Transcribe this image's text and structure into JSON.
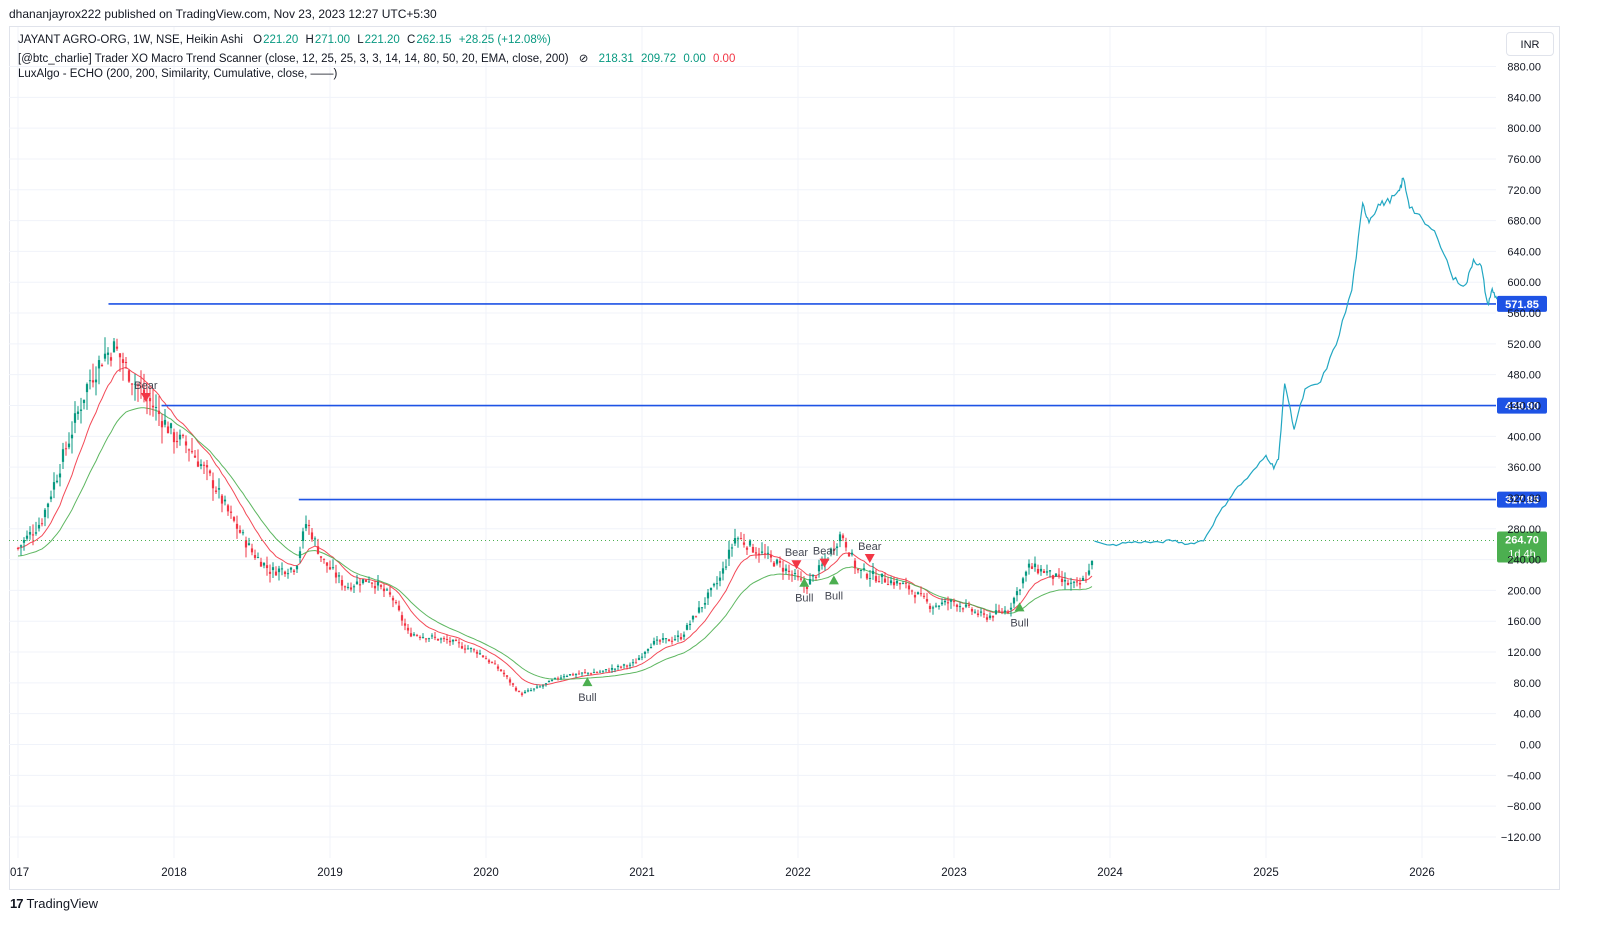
{
  "attribution": "dhananjayrox222 published on TradingView.com, Nov 23, 2023 12:27 UTC+5:30",
  "legend": {
    "main": {
      "symbol": "JAYANT AGRO-ORG, 1W, NSE, Heikin Ashi",
      "o_label": "O",
      "o": "221.20",
      "h_label": "H",
      "h": "271.00",
      "l_label": "L",
      "l": "221.20",
      "c_label": "C",
      "c": "262.15",
      "change": "+28.25 (+12.08%)"
    },
    "indicator1": {
      "name": "[@btc_charlie] Trader XO Macro Trend Scanner (close, 12, 25, 25, 3, 3, 14, 14, 80, 50, 20, EMA, close, 200)",
      "eye_icon": "eye-off-icon",
      "v1": "218.31",
      "v2": "209.72",
      "v3": "0.00",
      "v4": "0.00"
    },
    "indicator2": {
      "name": "LuxAlgo - ECHO (200, 200, Similarity, Cumulative, close, ——)"
    }
  },
  "currency": "INR",
  "brand": {
    "logo": "17",
    "name": "TradingView"
  },
  "colors": {
    "up": "#089981",
    "down": "#f23645",
    "level_line": "#1e53e5",
    "echo": "#22a7c2",
    "ema_fast": "#f23645",
    "ema_slow": "#4caf50",
    "current_price": "#4caf50",
    "grid": "#f0f3fa"
  },
  "chart_data": {
    "type": "candlestick",
    "x_axis_labels": [
      "017",
      "2018",
      "2019",
      "2020",
      "2021",
      "2022",
      "2023",
      "2024",
      "2025",
      "2026"
    ],
    "y_axis": {
      "ticks": [
        "880.00",
        "840.00",
        "800.00",
        "760.00",
        "720.00",
        "680.00",
        "640.00",
        "600.00",
        "560.00",
        "520.00",
        "480.00",
        "440.00",
        "400.00",
        "360.00",
        "320.00",
        "280.00",
        "240.00",
        "200.00",
        "160.00",
        "120.00",
        "80.00",
        "40.00",
        "0.00",
        "−40.00",
        "−80.00",
        "−120.00"
      ],
      "tick_values": [
        880,
        840,
        800,
        760,
        720,
        680,
        640,
        600,
        560,
        520,
        480,
        440,
        400,
        360,
        320,
        280,
        240,
        200,
        160,
        120,
        80,
        40,
        0,
        -40,
        -80,
        -120
      ],
      "range": [
        -145,
        915
      ]
    },
    "levels": [
      {
        "price": 571.85,
        "label": "571.85",
        "from_date": 2017.58
      },
      {
        "price": 439.9,
        "label": "439.90",
        "from_date": 2017.92
      },
      {
        "price": 317.85,
        "label": "317.85",
        "from_date": 2018.8
      }
    ],
    "current_price": {
      "price": 264.7,
      "label": "264.70",
      "countdown": "1d 4h"
    },
    "price_path": [
      [
        2017.0,
        255
      ],
      [
        2017.15,
        290
      ],
      [
        2017.3,
        380
      ],
      [
        2017.45,
        470
      ],
      [
        2017.55,
        505
      ],
      [
        2017.62,
        515
      ],
      [
        2017.75,
        470
      ],
      [
        2017.9,
        430
      ],
      [
        2018.0,
        400
      ],
      [
        2018.1,
        385
      ],
      [
        2018.25,
        340
      ],
      [
        2018.35,
        300
      ],
      [
        2018.5,
        250
      ],
      [
        2018.62,
        225
      ],
      [
        2018.78,
        230
      ],
      [
        2018.85,
        290
      ],
      [
        2018.95,
        240
      ],
      [
        2019.1,
        205
      ],
      [
        2019.25,
        215
      ],
      [
        2019.4,
        190
      ],
      [
        2019.5,
        145
      ],
      [
        2019.62,
        140
      ],
      [
        2019.75,
        135
      ],
      [
        2019.95,
        120
      ],
      [
        2020.1,
        95
      ],
      [
        2020.22,
        65
      ],
      [
        2020.35,
        75
      ],
      [
        2020.5,
        90
      ],
      [
        2020.75,
        95
      ],
      [
        2020.95,
        105
      ],
      [
        2021.05,
        130
      ],
      [
        2021.25,
        140
      ],
      [
        2021.35,
        170
      ],
      [
        2021.5,
        215
      ],
      [
        2021.6,
        270
      ],
      [
        2021.75,
        250
      ],
      [
        2021.9,
        230
      ],
      [
        2022.05,
        205
      ],
      [
        2022.15,
        230
      ],
      [
        2022.28,
        275
      ],
      [
        2022.38,
        225
      ],
      [
        2022.55,
        215
      ],
      [
        2022.7,
        205
      ],
      [
        2022.85,
        180
      ],
      [
        2023.0,
        185
      ],
      [
        2023.2,
        165
      ],
      [
        2023.35,
        175
      ],
      [
        2023.42,
        205
      ],
      [
        2023.48,
        230
      ],
      [
        2023.58,
        225
      ],
      [
        2023.7,
        210
      ],
      [
        2023.8,
        205
      ],
      [
        2023.87,
        225
      ],
      [
        2023.9,
        262
      ]
    ],
    "echo_projection": [
      [
        2023.9,
        264
      ],
      [
        2024.0,
        258
      ],
      [
        2024.1,
        262
      ],
      [
        2024.2,
        263
      ],
      [
        2024.3,
        262
      ],
      [
        2024.4,
        265
      ],
      [
        2024.5,
        260
      ],
      [
        2024.6,
        265
      ],
      [
        2024.7,
        300
      ],
      [
        2024.8,
        330
      ],
      [
        2024.9,
        350
      ],
      [
        2025.0,
        375
      ],
      [
        2025.05,
        360
      ],
      [
        2025.08,
        370
      ],
      [
        2025.12,
        470
      ],
      [
        2025.18,
        410
      ],
      [
        2025.25,
        460
      ],
      [
        2025.35,
        470
      ],
      [
        2025.45,
        520
      ],
      [
        2025.55,
        590
      ],
      [
        2025.62,
        700
      ],
      [
        2025.66,
        680
      ],
      [
        2025.72,
        700
      ],
      [
        2025.78,
        705
      ],
      [
        2025.85,
        715
      ],
      [
        2025.88,
        735
      ],
      [
        2025.92,
        700
      ],
      [
        2026.0,
        680
      ],
      [
        2026.1,
        660
      ],
      [
        2026.2,
        605
      ],
      [
        2026.28,
        595
      ],
      [
        2026.33,
        630
      ],
      [
        2026.38,
        620
      ],
      [
        2026.42,
        570
      ],
      [
        2026.45,
        590
      ],
      [
        2026.48,
        578
      ]
    ],
    "signals": [
      {
        "type": "bear",
        "label": "Bear",
        "date": 2017.82,
        "price": 451
      },
      {
        "type": "bull",
        "label": "Bull",
        "date": 2020.65,
        "price": 81
      },
      {
        "type": "bear",
        "label": "Bear",
        "date": 2021.99,
        "price": 234
      },
      {
        "type": "bull",
        "label": "Bull",
        "date": 2022.04,
        "price": 210
      },
      {
        "type": "bear",
        "label": "Bear",
        "date": 2022.17,
        "price": 236
      },
      {
        "type": "bull",
        "label": "Bull",
        "date": 2022.23,
        "price": 213
      },
      {
        "type": "bear",
        "label": "Bear",
        "date": 2022.46,
        "price": 242
      },
      {
        "type": "bull",
        "label": "Bull",
        "date": 2023.42,
        "price": 178
      }
    ]
  }
}
